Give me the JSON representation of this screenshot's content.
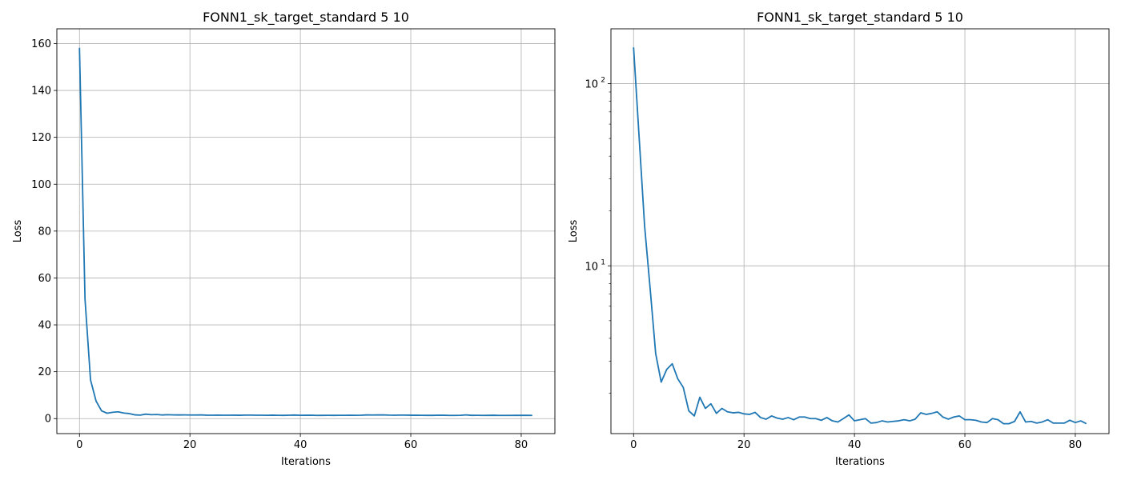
{
  "chart_data": [
    {
      "type": "line",
      "title": "FONN1_sk_target_standard 5 10",
      "xlabel": "Iterations",
      "ylabel": "Loss",
      "yscale": "linear",
      "grid": true,
      "xlim": [
        -4.1,
        86.1
      ],
      "ylim": [
        -6.4,
        166.3
      ],
      "xticks": [
        0,
        20,
        40,
        60,
        80
      ],
      "yticks": [
        0,
        20,
        40,
        60,
        80,
        100,
        120,
        140,
        160
      ],
      "series": [
        {
          "color": "#1f77b4",
          "x": [
            0,
            1,
            2,
            3,
            4,
            5,
            6,
            7,
            8,
            9,
            10,
            11,
            12,
            13,
            14,
            15,
            16,
            17,
            18,
            19,
            20,
            21,
            22,
            23,
            24,
            25,
            26,
            27,
            28,
            29,
            30,
            31,
            32,
            33,
            34,
            35,
            36,
            37,
            38,
            39,
            40,
            41,
            42,
            43,
            44,
            45,
            46,
            47,
            48,
            49,
            50,
            51,
            52,
            53,
            54,
            55,
            56,
            57,
            58,
            59,
            60,
            61,
            62,
            63,
            64,
            65,
            66,
            67,
            68,
            69,
            70,
            71,
            72,
            73,
            74,
            75,
            76,
            77,
            78,
            79,
            80,
            81,
            82
          ],
          "values": [
            158.2,
            51.0,
            16.5,
            7.5,
            3.3,
            2.3,
            2.7,
            2.9,
            2.4,
            2.15,
            1.6,
            1.5,
            1.9,
            1.65,
            1.75,
            1.55,
            1.65,
            1.58,
            1.56,
            1.57,
            1.54,
            1.53,
            1.57,
            1.47,
            1.44,
            1.5,
            1.46,
            1.44,
            1.47,
            1.43,
            1.48,
            1.48,
            1.45,
            1.45,
            1.42,
            1.47,
            1.41,
            1.39,
            1.45,
            1.52,
            1.41,
            1.43,
            1.45,
            1.37,
            1.38,
            1.41,
            1.39,
            1.4,
            1.41,
            1.43,
            1.41,
            1.44,
            1.56,
            1.53,
            1.55,
            1.58,
            1.48,
            1.44,
            1.48,
            1.5,
            1.43,
            1.43,
            1.42,
            1.39,
            1.38,
            1.45,
            1.43,
            1.36,
            1.36,
            1.4,
            1.58,
            1.39,
            1.4,
            1.37,
            1.39,
            1.43,
            1.37,
            1.37,
            1.37,
            1.42,
            1.38,
            1.41,
            1.36
          ]
        }
      ]
    },
    {
      "type": "line",
      "title": "FONN1_sk_target_standard 5 10",
      "xlabel": "Iterations",
      "ylabel": "Loss",
      "yscale": "log",
      "grid": true,
      "xlim": [
        -4.1,
        86.1
      ],
      "ylim": [
        1.2,
        200
      ],
      "xticks": [
        0,
        20,
        40,
        60,
        80
      ],
      "yticks_major": [
        {
          "value": 10,
          "label": "10",
          "exp": "1"
        },
        {
          "value": 100,
          "label": "10",
          "exp": "2"
        }
      ],
      "series": [
        {
          "color": "#1f77b4",
          "x": [
            0,
            1,
            2,
            3,
            4,
            5,
            6,
            7,
            8,
            9,
            10,
            11,
            12,
            13,
            14,
            15,
            16,
            17,
            18,
            19,
            20,
            21,
            22,
            23,
            24,
            25,
            26,
            27,
            28,
            29,
            30,
            31,
            32,
            33,
            34,
            35,
            36,
            37,
            38,
            39,
            40,
            41,
            42,
            43,
            44,
            45,
            46,
            47,
            48,
            49,
            50,
            51,
            52,
            53,
            54,
            55,
            56,
            57,
            58,
            59,
            60,
            61,
            62,
            63,
            64,
            65,
            66,
            67,
            68,
            69,
            70,
            71,
            72,
            73,
            74,
            75,
            76,
            77,
            78,
            79,
            80,
            81,
            82
          ],
          "values": [
            158.2,
            51.0,
            16.5,
            7.5,
            3.3,
            2.3,
            2.7,
            2.9,
            2.4,
            2.15,
            1.6,
            1.5,
            1.9,
            1.65,
            1.75,
            1.55,
            1.65,
            1.58,
            1.56,
            1.57,
            1.54,
            1.53,
            1.57,
            1.47,
            1.44,
            1.5,
            1.46,
            1.44,
            1.47,
            1.43,
            1.48,
            1.48,
            1.45,
            1.45,
            1.42,
            1.47,
            1.41,
            1.39,
            1.45,
            1.52,
            1.41,
            1.43,
            1.45,
            1.37,
            1.38,
            1.41,
            1.39,
            1.4,
            1.41,
            1.43,
            1.41,
            1.44,
            1.56,
            1.53,
            1.55,
            1.58,
            1.48,
            1.44,
            1.48,
            1.5,
            1.43,
            1.43,
            1.42,
            1.39,
            1.38,
            1.45,
            1.43,
            1.36,
            1.36,
            1.4,
            1.58,
            1.39,
            1.4,
            1.37,
            1.39,
            1.43,
            1.37,
            1.37,
            1.37,
            1.42,
            1.38,
            1.41,
            1.36
          ]
        }
      ]
    }
  ]
}
